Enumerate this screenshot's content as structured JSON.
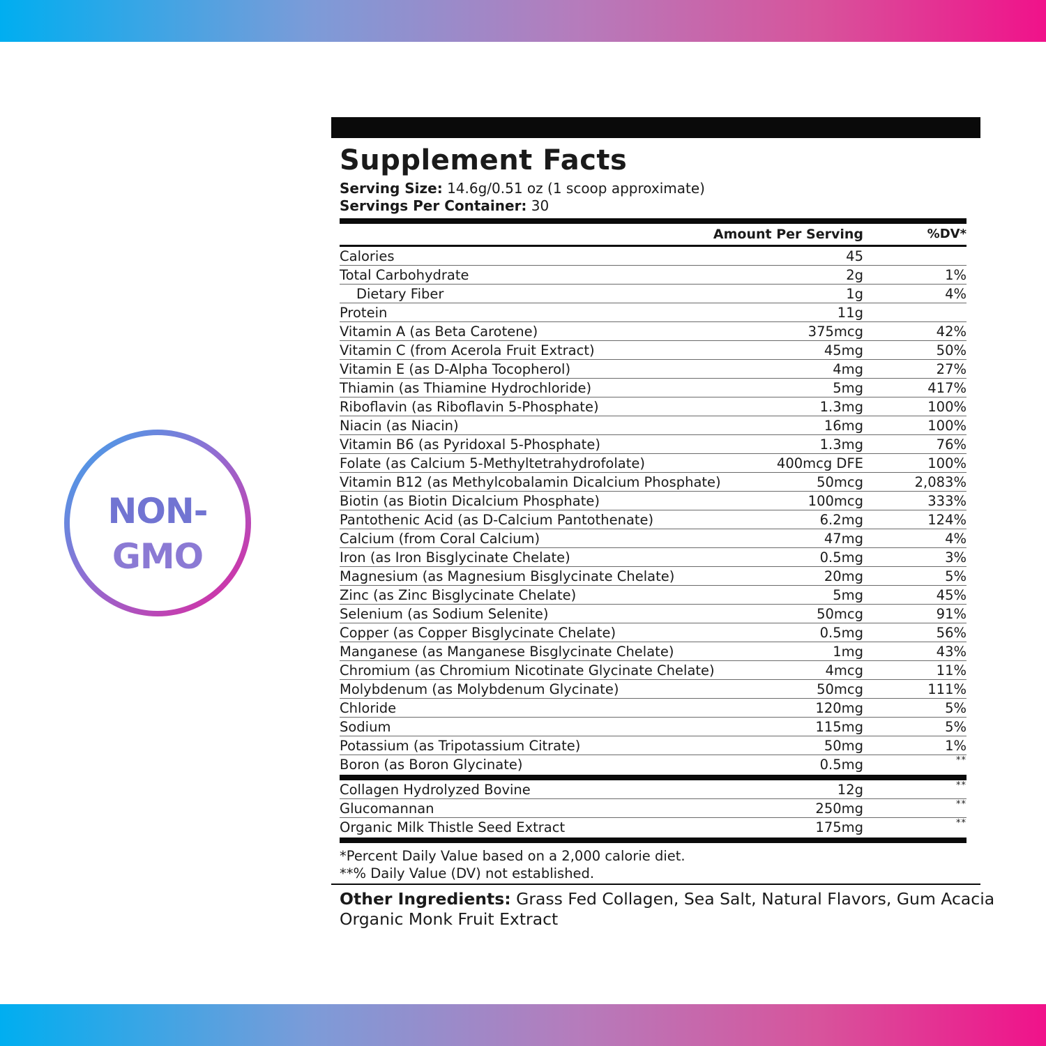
{
  "badge": {
    "line1": "NON-",
    "line2": "GMO"
  },
  "facts": {
    "title": "Supplement Facts",
    "serving_size_label": "Serving Size:",
    "serving_size_value": " 14.6g/0.51 oz (1 scoop approximate)",
    "servings_label": "Servings Per Container:",
    "servings_value": " 30",
    "col_amount": "Amount Per Serving",
    "col_dv": "%DV*",
    "rows": [
      {
        "name": "Calories",
        "amount": "45",
        "dv": ""
      },
      {
        "name": "Total Carbohydrate",
        "amount": "2g",
        "dv": "1%"
      },
      {
        "name": "Dietary Fiber",
        "amount": "1g",
        "dv": "4%",
        "indent": true
      },
      {
        "name": "Protein",
        "amount": "11g",
        "dv": ""
      },
      {
        "name": "Vitamin A (as Beta Carotene)",
        "amount": "375mcg",
        "dv": "42%"
      },
      {
        "name": "Vitamin C (from Acerola Fruit Extract)",
        "amount": "45mg",
        "dv": "50%"
      },
      {
        "name": "Vitamin E (as D-Alpha Tocopherol)",
        "amount": "4mg",
        "dv": "27%"
      },
      {
        "name": "Thiamin (as Thiamine Hydrochloride)",
        "amount": "5mg",
        "dv": "417%"
      },
      {
        "name": "Riboflavin (as Riboflavin 5-Phosphate)",
        "amount": "1.3mg",
        "dv": "100%"
      },
      {
        "name": "Niacin (as Niacin)",
        "amount": "16mg",
        "dv": "100%"
      },
      {
        "name": "Vitamin B6 (as Pyridoxal 5-Phosphate)",
        "amount": "1.3mg",
        "dv": "76%"
      },
      {
        "name": "Folate (as Calcium 5-Methyltetrahydrofolate)",
        "amount": "400mcg DFE",
        "dv": "100%"
      },
      {
        "name": "Vitamin B12 (as Methylcobalamin Dicalcium Phosphate)",
        "amount": "50mcg",
        "dv": "2,083%"
      },
      {
        "name": "Biotin (as Biotin Dicalcium Phosphate)",
        "amount": "100mcg",
        "dv": "333%"
      },
      {
        "name": "Pantothenic Acid (as D-Calcium Pantothenate)",
        "amount": "6.2mg",
        "dv": "124%"
      },
      {
        "name": "Calcium (from Coral Calcium)",
        "amount": "47mg",
        "dv": "4%"
      },
      {
        "name": "Iron (as Iron Bisglycinate Chelate)",
        "amount": "0.5mg",
        "dv": "3%"
      },
      {
        "name": "Magnesium (as Magnesium Bisglycinate Chelate)",
        "amount": "20mg",
        "dv": "5%"
      },
      {
        "name": "Zinc (as Zinc Bisglycinate Chelate)",
        "amount": "5mg",
        "dv": "45%"
      },
      {
        "name": "Selenium (as Sodium Selenite)",
        "amount": "50mcg",
        "dv": "91%"
      },
      {
        "name": "Copper (as Copper Bisglycinate Chelate)",
        "amount": "0.5mg",
        "dv": "56%"
      },
      {
        "name": "Manganese (as Manganese Bisglycinate Chelate)",
        "amount": "1mg",
        "dv": "43%"
      },
      {
        "name": "Chromium (as Chromium Nicotinate Glycinate Chelate)",
        "amount": "4mcg",
        "dv": "11%"
      },
      {
        "name": "Molybdenum (as Molybdenum Glycinate)",
        "amount": "50mcg",
        "dv": "111%"
      },
      {
        "name": "Chloride",
        "amount": "120mg",
        "dv": "5%"
      },
      {
        "name": "Sodium",
        "amount": "115mg",
        "dv": "5%"
      },
      {
        "name": "Potassium (as Tripotassium Citrate)",
        "amount": "50mg",
        "dv": "1%"
      },
      {
        "name": "Boron (as Boron Glycinate)",
        "amount": "0.5mg",
        "dv": "**"
      }
    ],
    "rows2": [
      {
        "name": "Collagen Hydrolyzed Bovine",
        "amount": "12g",
        "dv": "**"
      },
      {
        "name": "Glucomannan",
        "amount": "250mg",
        "dv": "**"
      },
      {
        "name": "Organic Milk Thistle Seed Extract",
        "amount": "175mg",
        "dv": "**"
      }
    ],
    "footnote1": "*Percent Daily Value based on a 2,000 calorie diet.",
    "footnote2": "**% Daily Value (DV) not established.",
    "other_label": "Other Ingredients:",
    "other_line1": " Grass Fed Collagen, Sea Salt, Natural Flavors, Gum Acacia",
    "other_line2": "Organic Monk Fruit Extract"
  }
}
